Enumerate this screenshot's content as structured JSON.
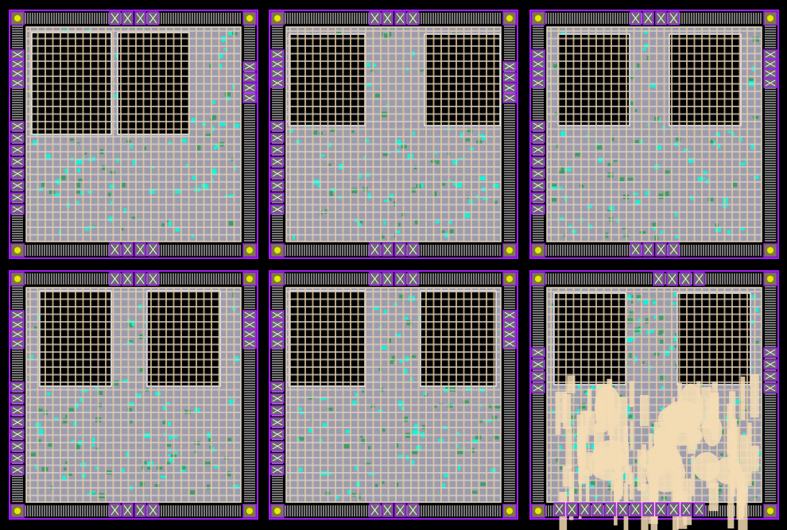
{
  "view": {
    "layout_count": 6,
    "colors": {
      "background": "#000000",
      "pad_ring": "#a020f0",
      "io_stripe": "#c8c8c8",
      "core_fill": "#9c9cae",
      "power_grid": "#e6c99a",
      "macro_fill": "#000000",
      "macro_outline": "#f0f0f0",
      "cell_cyan": "#00ffe0",
      "cell_green": "#2f9e5a",
      "pad_yellow": "#e8e800",
      "routing_blob": "#f3dcb4"
    },
    "layouts": [
      {
        "id": "layout-1",
        "congestion": false
      },
      {
        "id": "layout-2",
        "congestion": false
      },
      {
        "id": "layout-3",
        "congestion": false
      },
      {
        "id": "layout-4",
        "congestion": false
      },
      {
        "id": "layout-5",
        "congestion": false
      },
      {
        "id": "layout-6",
        "congestion": true
      }
    ]
  }
}
